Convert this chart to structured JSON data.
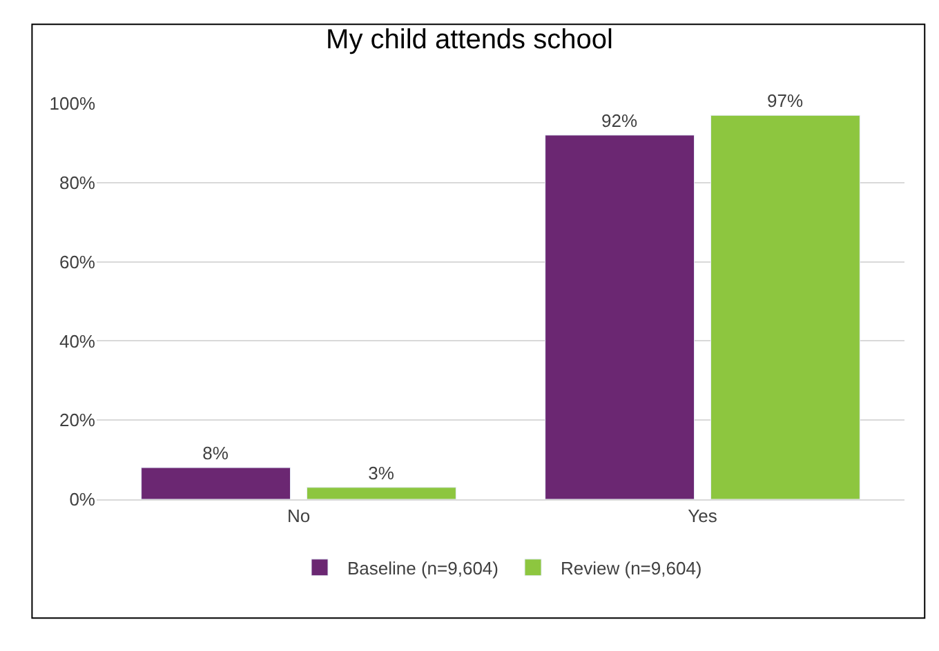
{
  "chart_data": {
    "type": "bar",
    "title": "My child attends school",
    "categories": [
      "No",
      "Yes"
    ],
    "series": [
      {
        "name": "Baseline (n=9,604)",
        "color": "#6b2772",
        "values": [
          8,
          92
        ],
        "value_labels": [
          "8%",
          "92%"
        ]
      },
      {
        "name": "Review (n=9,604)",
        "color": "#8dc63f",
        "values": [
          3,
          97
        ],
        "value_labels": [
          "3%",
          "97%"
        ]
      }
    ],
    "ylim": [
      0,
      100
    ],
    "yticks": [
      {
        "value": 0,
        "label": "0%"
      },
      {
        "value": 20,
        "label": "20%"
      },
      {
        "value": 40,
        "label": "40%"
      },
      {
        "value": 60,
        "label": "60%"
      },
      {
        "value": 80,
        "label": "80%"
      },
      {
        "value": 100,
        "label": "100%"
      }
    ],
    "grid": "y",
    "legend": "bottom"
  }
}
